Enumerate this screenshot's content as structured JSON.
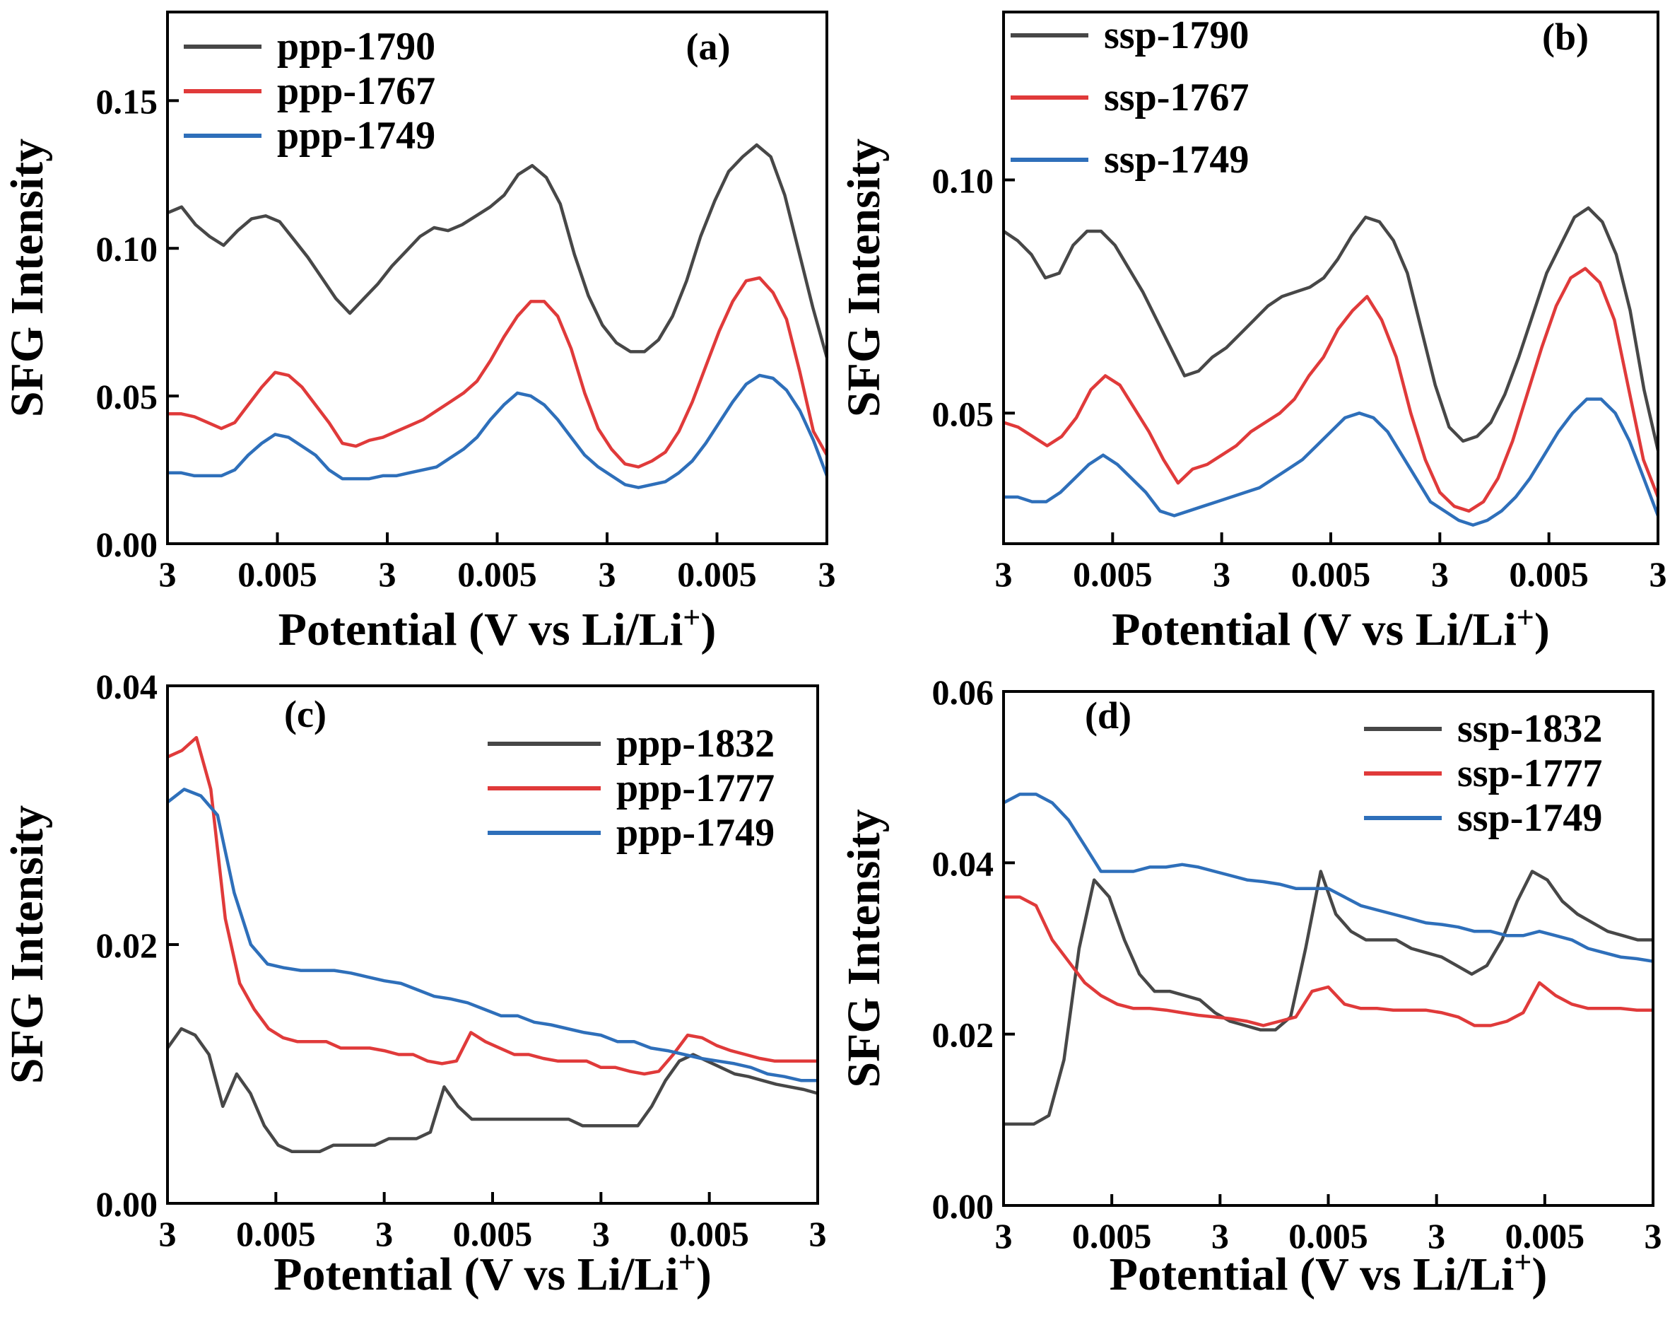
{
  "colors": {
    "gray": "#474747",
    "red": "#e03a3a",
    "blue": "#2e6fba"
  },
  "chart_data": [
    {
      "type": "line",
      "panel_label": "(a)",
      "ylabel": "SFG Intensity",
      "xlabel": "Potential (V vs Li/Li",
      "xlabel_sup": "+",
      "xlabel_end": ")",
      "x_ticks": [
        "3",
        "0.005",
        "3",
        "0.005",
        "3",
        "0.005",
        "3"
      ],
      "y_ticks": [
        "0.00",
        "0.05",
        "0.10",
        "0.15"
      ],
      "y_tick_values": [
        0,
        0.05,
        0.1,
        0.15
      ],
      "ylim": [
        0,
        0.18
      ],
      "legend_position": "top-left",
      "series": [
        {
          "name": "ppp-1790",
          "color": "#474747",
          "values": [
            0.112,
            0.114,
            0.108,
            0.104,
            0.101,
            0.106,
            0.11,
            0.111,
            0.109,
            0.103,
            0.097,
            0.09,
            0.083,
            0.078,
            0.083,
            0.088,
            0.094,
            0.099,
            0.104,
            0.107,
            0.106,
            0.108,
            0.111,
            0.114,
            0.118,
            0.125,
            0.128,
            0.124,
            0.115,
            0.098,
            0.084,
            0.074,
            0.068,
            0.065,
            0.065,
            0.069,
            0.077,
            0.089,
            0.104,
            0.116,
            0.126,
            0.131,
            0.135,
            0.131,
            0.118,
            0.099,
            0.08,
            0.063
          ]
        },
        {
          "name": "ppp-1767",
          "color": "#e03a3a",
          "values": [
            0.044,
            0.044,
            0.043,
            0.041,
            0.039,
            0.041,
            0.047,
            0.053,
            0.058,
            0.057,
            0.053,
            0.047,
            0.041,
            0.034,
            0.033,
            0.035,
            0.036,
            0.038,
            0.04,
            0.042,
            0.045,
            0.048,
            0.051,
            0.055,
            0.062,
            0.07,
            0.077,
            0.082,
            0.082,
            0.077,
            0.066,
            0.051,
            0.039,
            0.032,
            0.027,
            0.026,
            0.028,
            0.031,
            0.038,
            0.048,
            0.06,
            0.072,
            0.082,
            0.089,
            0.09,
            0.085,
            0.076,
            0.058,
            0.038,
            0.03
          ]
        },
        {
          "name": "ppp-1749",
          "color": "#2e6fba",
          "values": [
            0.024,
            0.024,
            0.023,
            0.023,
            0.023,
            0.025,
            0.03,
            0.034,
            0.037,
            0.036,
            0.033,
            0.03,
            0.025,
            0.022,
            0.022,
            0.022,
            0.023,
            0.023,
            0.024,
            0.025,
            0.026,
            0.029,
            0.032,
            0.036,
            0.042,
            0.047,
            0.051,
            0.05,
            0.047,
            0.042,
            0.036,
            0.03,
            0.026,
            0.023,
            0.02,
            0.019,
            0.02,
            0.021,
            0.024,
            0.028,
            0.034,
            0.041,
            0.048,
            0.054,
            0.057,
            0.056,
            0.052,
            0.045,
            0.035,
            0.023
          ]
        }
      ]
    },
    {
      "type": "line",
      "panel_label": "(b)",
      "ylabel": "SFG Intensity",
      "xlabel": "Potential (V vs Li/Li",
      "xlabel_sup": "+",
      "xlabel_end": ")",
      "x_ticks": [
        "3",
        "0.005",
        "3",
        "0.005",
        "3",
        "0.005",
        "3"
      ],
      "y_ticks": [
        "0.05",
        "0.10"
      ],
      "y_tick_values": [
        0.05,
        0.1
      ],
      "ylim": [
        0.022,
        0.136
      ],
      "legend_position": "top-left",
      "series": [
        {
          "name": "ssp-1790",
          "color": "#474747",
          "values": [
            0.089,
            0.087,
            0.084,
            0.079,
            0.08,
            0.086,
            0.089,
            0.089,
            0.086,
            0.081,
            0.076,
            0.07,
            0.064,
            0.058,
            0.059,
            0.062,
            0.064,
            0.067,
            0.07,
            0.073,
            0.075,
            0.076,
            0.077,
            0.079,
            0.083,
            0.088,
            0.092,
            0.091,
            0.087,
            0.08,
            0.068,
            0.056,
            0.047,
            0.044,
            0.045,
            0.048,
            0.054,
            0.062,
            0.071,
            0.08,
            0.086,
            0.092,
            0.094,
            0.091,
            0.084,
            0.072,
            0.055,
            0.042
          ]
        },
        {
          "name": "ssp-1767",
          "color": "#e03a3a",
          "values": [
            0.048,
            0.047,
            0.045,
            0.043,
            0.045,
            0.049,
            0.055,
            0.058,
            0.056,
            0.051,
            0.046,
            0.04,
            0.035,
            0.038,
            0.039,
            0.041,
            0.043,
            0.046,
            0.048,
            0.05,
            0.053,
            0.058,
            0.062,
            0.068,
            0.072,
            0.075,
            0.07,
            0.062,
            0.05,
            0.04,
            0.033,
            0.03,
            0.029,
            0.031,
            0.036,
            0.044,
            0.054,
            0.064,
            0.073,
            0.079,
            0.081,
            0.078,
            0.07,
            0.055,
            0.04,
            0.032
          ]
        },
        {
          "name": "ssp-1749",
          "color": "#2e6fba",
          "values": [
            0.032,
            0.032,
            0.031,
            0.031,
            0.033,
            0.036,
            0.039,
            0.041,
            0.039,
            0.036,
            0.033,
            0.029,
            0.028,
            0.029,
            0.03,
            0.031,
            0.032,
            0.033,
            0.034,
            0.036,
            0.038,
            0.04,
            0.043,
            0.046,
            0.049,
            0.05,
            0.049,
            0.046,
            0.041,
            0.036,
            0.031,
            0.029,
            0.027,
            0.026,
            0.027,
            0.029,
            0.032,
            0.036,
            0.041,
            0.046,
            0.05,
            0.053,
            0.053,
            0.05,
            0.044,
            0.036,
            0.028
          ]
        }
      ]
    },
    {
      "type": "line",
      "panel_label": "(c)",
      "ylabel": "SFG Intensity",
      "xlabel": "Potential (V vs Li/Li",
      "xlabel_sup": "+",
      "xlabel_end": ")",
      "x_ticks": [
        "3",
        "0.005",
        "3",
        "0.005",
        "3",
        "0.005",
        "3"
      ],
      "y_ticks": [
        "0.00",
        "0.02",
        "0.04"
      ],
      "y_tick_values": [
        0,
        0.02,
        0.04
      ],
      "ylim": [
        0,
        0.04
      ],
      "legend_position": "top-right",
      "series": [
        {
          "name": "ppp-1832",
          "color": "#474747",
          "values": [
            0.012,
            0.0135,
            0.013,
            0.0115,
            0.0075,
            0.01,
            0.0085,
            0.006,
            0.0045,
            0.004,
            0.004,
            0.004,
            0.0045,
            0.0045,
            0.0045,
            0.0045,
            0.005,
            0.005,
            0.005,
            0.0055,
            0.009,
            0.0075,
            0.0065,
            0.0065,
            0.0065,
            0.0065,
            0.0065,
            0.0065,
            0.0065,
            0.0065,
            0.006,
            0.006,
            0.006,
            0.006,
            0.006,
            0.0075,
            0.0095,
            0.011,
            0.0115,
            0.011,
            0.0105,
            0.01,
            0.0098,
            0.0095,
            0.0092,
            0.009,
            0.0088,
            0.0085
          ]
        },
        {
          "name": "ppp-1777",
          "color": "#e03a3a",
          "values": [
            0.0345,
            0.035,
            0.036,
            0.032,
            0.022,
            0.017,
            0.015,
            0.0135,
            0.0128,
            0.0125,
            0.0125,
            0.0125,
            0.012,
            0.012,
            0.012,
            0.0118,
            0.0115,
            0.0115,
            0.011,
            0.0108,
            0.011,
            0.0132,
            0.0125,
            0.012,
            0.0115,
            0.0115,
            0.0112,
            0.011,
            0.011,
            0.011,
            0.0105,
            0.0105,
            0.0102,
            0.01,
            0.0102,
            0.0115,
            0.013,
            0.0128,
            0.0122,
            0.0118,
            0.0115,
            0.0112,
            0.011,
            0.011,
            0.011,
            0.011
          ]
        },
        {
          "name": "ppp-1749",
          "color": "#2e6fba",
          "values": [
            0.031,
            0.032,
            0.0315,
            0.03,
            0.024,
            0.02,
            0.0185,
            0.0182,
            0.018,
            0.018,
            0.018,
            0.0178,
            0.0175,
            0.0172,
            0.017,
            0.0165,
            0.016,
            0.0158,
            0.0155,
            0.015,
            0.0145,
            0.0145,
            0.014,
            0.0138,
            0.0135,
            0.0132,
            0.013,
            0.0125,
            0.0125,
            0.012,
            0.0118,
            0.0115,
            0.0112,
            0.011,
            0.0108,
            0.0105,
            0.01,
            0.0098,
            0.0095,
            0.0095
          ]
        }
      ]
    },
    {
      "type": "line",
      "panel_label": "(d)",
      "ylabel": "SFG Intensity",
      "xlabel": "Potential (V vs Li/Li",
      "xlabel_sup": "+",
      "xlabel_end": ")",
      "x_ticks": [
        "3",
        "0.005",
        "3",
        "0.005",
        "3",
        "0.005",
        "3"
      ],
      "y_ticks": [
        "0.00",
        "0.02",
        "0.04",
        "0.06"
      ],
      "y_tick_values": [
        0,
        0.02,
        0.04,
        0.06
      ],
      "ylim": [
        0,
        0.06
      ],
      "legend_position": "top-right",
      "series": [
        {
          "name": "ssp-1832",
          "color": "#474747",
          "values": [
            0.0095,
            0.0095,
            0.0095,
            0.0105,
            0.017,
            0.03,
            0.038,
            0.036,
            0.031,
            0.027,
            0.025,
            0.025,
            0.0245,
            0.024,
            0.0225,
            0.0215,
            0.021,
            0.0205,
            0.0205,
            0.022,
            0.03,
            0.039,
            0.034,
            0.032,
            0.031,
            0.031,
            0.031,
            0.03,
            0.0295,
            0.029,
            0.028,
            0.027,
            0.028,
            0.031,
            0.0355,
            0.039,
            0.038,
            0.0355,
            0.034,
            0.033,
            0.032,
            0.0315,
            0.031,
            0.031
          ]
        },
        {
          "name": "ssp-1777",
          "color": "#e03a3a",
          "values": [
            0.036,
            0.036,
            0.035,
            0.031,
            0.0285,
            0.026,
            0.0245,
            0.0235,
            0.023,
            0.023,
            0.0228,
            0.0225,
            0.0222,
            0.022,
            0.0218,
            0.0215,
            0.021,
            0.0215,
            0.022,
            0.025,
            0.0255,
            0.0235,
            0.023,
            0.023,
            0.0228,
            0.0228,
            0.0228,
            0.0225,
            0.022,
            0.021,
            0.021,
            0.0215,
            0.0225,
            0.026,
            0.0245,
            0.0235,
            0.023,
            0.023,
            0.023,
            0.0228,
            0.0228
          ]
        },
        {
          "name": "ssp-1749",
          "color": "#2e6fba",
          "values": [
            0.047,
            0.048,
            0.048,
            0.047,
            0.045,
            0.042,
            0.039,
            0.039,
            0.039,
            0.0395,
            0.0395,
            0.0398,
            0.0395,
            0.039,
            0.0385,
            0.038,
            0.0378,
            0.0375,
            0.037,
            0.037,
            0.037,
            0.036,
            0.035,
            0.0345,
            0.034,
            0.0335,
            0.033,
            0.0328,
            0.0325,
            0.032,
            0.032,
            0.0315,
            0.0315,
            0.032,
            0.0315,
            0.031,
            0.03,
            0.0295,
            0.029,
            0.0288,
            0.0285
          ]
        }
      ]
    }
  ]
}
